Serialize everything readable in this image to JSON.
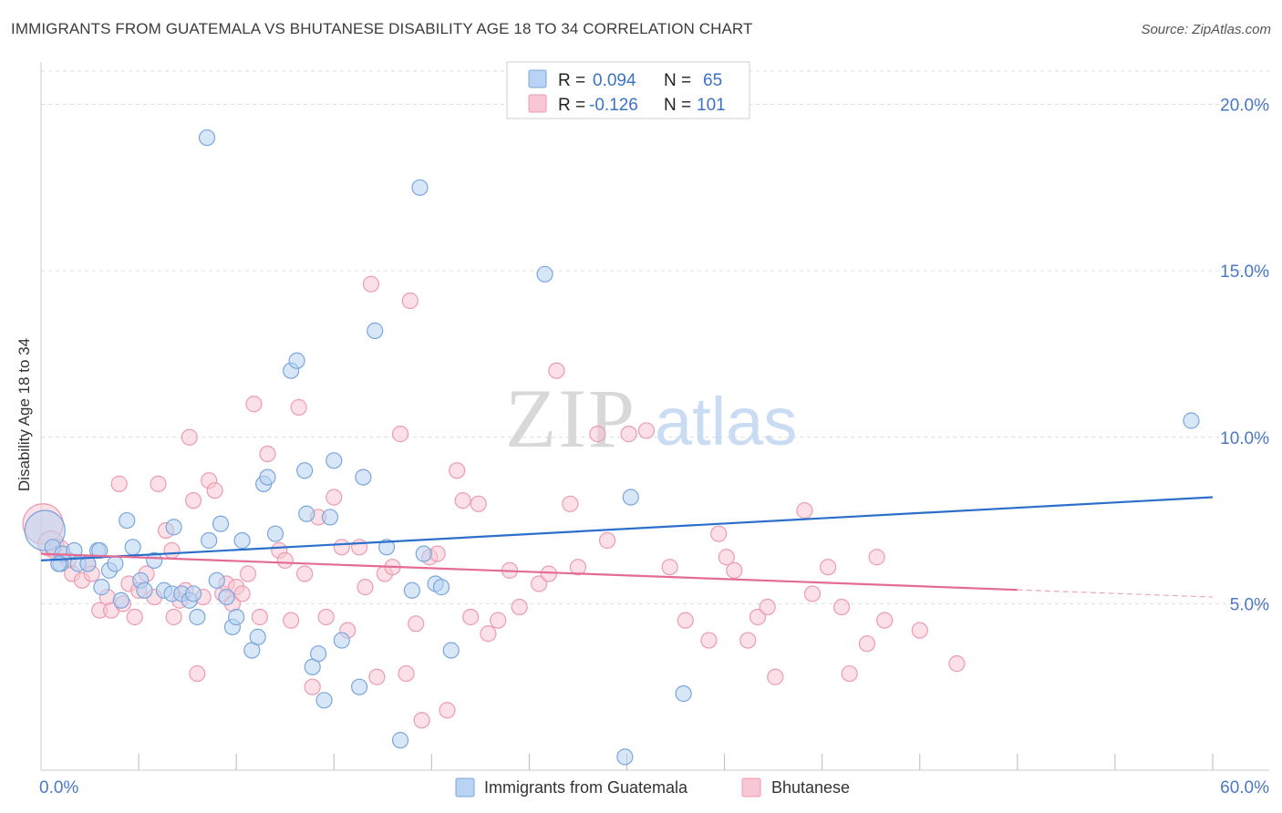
{
  "title": "IMMIGRANTS FROM GUATEMALA VS BHUTANESE DISABILITY AGE 18 TO 34 CORRELATION CHART",
  "source": "Source: ZipAtlas.com",
  "watermark": {
    "zip": "ZIP",
    "atlas": "atlas"
  },
  "legend_box": {
    "rows": [
      {
        "r_label": "R =",
        "r_value": "0.094",
        "n_label": "N =",
        "n_value": "65"
      },
      {
        "r_label": "R =",
        "r_value": "-0.126",
        "n_label": "N =",
        "n_value": "101"
      }
    ]
  },
  "bottom_legend": [
    "Immigrants from Guatemala",
    "Bhutanese"
  ],
  "colors": {
    "blue_fill": "#b8d3f3",
    "blue_stroke": "#7aa6dc",
    "blue_line": "#2c6fca",
    "pink_fill": "#f8c6d4",
    "pink_stroke": "#ec9bb2",
    "pink_line": "#e36b94",
    "tick_text": "#4a78c2",
    "grid": "#dddddd"
  },
  "chart_data": {
    "type": "scatter",
    "title": "IMMIGRANTS FROM GUATEMALA VS BHUTANESE DISABILITY AGE 18 TO 34 CORRELATION CHART",
    "xlabel": "",
    "ylabel": "Disability Age 18 to 34",
    "xlim": [
      0,
      60
    ],
    "ylim": [
      0,
      21
    ],
    "x_tick_labels": [
      "0.0%",
      "60.0%"
    ],
    "y_ticks": [
      5,
      10,
      15,
      20
    ],
    "y_tick_labels": [
      "5.0%",
      "10.0%",
      "15.0%",
      "20.0%"
    ],
    "grid": true,
    "legend_placement": "top-center",
    "series": [
      {
        "name": "Immigrants from Guatemala",
        "r": 0.094,
        "n": 65,
        "trend": {
          "x": [
            0,
            60
          ],
          "y": [
            6.3,
            8.2
          ],
          "dashed_from": null
        },
        "points": [
          [
            0.2,
            7.2,
            22
          ],
          [
            0.6,
            6.7,
            10
          ],
          [
            1.0,
            6.2,
            10
          ],
          [
            1.1,
            6.5,
            10
          ],
          [
            1.7,
            6.6,
            10
          ],
          [
            1.9,
            6.2,
            10
          ],
          [
            2.4,
            6.2,
            10
          ],
          [
            2.9,
            6.6,
            10
          ],
          [
            3.1,
            5.5,
            10
          ],
          [
            3.5,
            6.0,
            10
          ],
          [
            3.8,
            6.2,
            10
          ],
          [
            4.1,
            5.1,
            10
          ],
          [
            4.4,
            7.5,
            10
          ],
          [
            4.7,
            6.7,
            10
          ],
          [
            5.1,
            5.7,
            10
          ],
          [
            5.3,
            5.4,
            10
          ],
          [
            5.8,
            6.3,
            10
          ],
          [
            6.3,
            5.4,
            10
          ],
          [
            6.7,
            5.3,
            10
          ],
          [
            6.8,
            7.3,
            10
          ],
          [
            7.2,
            5.3,
            10
          ],
          [
            7.6,
            5.1,
            10
          ],
          [
            7.8,
            5.3,
            10
          ],
          [
            8.0,
            4.6,
            10
          ],
          [
            8.5,
            19.0,
            10
          ],
          [
            8.6,
            6.9,
            10
          ],
          [
            9.0,
            5.7,
            10
          ],
          [
            9.2,
            7.4,
            10
          ],
          [
            9.5,
            5.2,
            10
          ],
          [
            9.8,
            4.3,
            10
          ],
          [
            10.0,
            4.6,
            10
          ],
          [
            10.3,
            6.9,
            10
          ],
          [
            10.8,
            3.6,
            10
          ],
          [
            11.1,
            4.0,
            10
          ],
          [
            11.4,
            8.6,
            10
          ],
          [
            11.6,
            8.8,
            10
          ],
          [
            12.0,
            7.1,
            10
          ],
          [
            12.8,
            12.0,
            10
          ],
          [
            13.1,
            12.3,
            10
          ],
          [
            13.5,
            9.0,
            10
          ],
          [
            13.6,
            7.7,
            10
          ],
          [
            13.9,
            3.1,
            10
          ],
          [
            14.2,
            3.5,
            10
          ],
          [
            14.5,
            2.1,
            10
          ],
          [
            14.8,
            7.6,
            10
          ],
          [
            15.0,
            9.3,
            10
          ],
          [
            15.4,
            3.9,
            10
          ],
          [
            16.3,
            2.5,
            10
          ],
          [
            16.5,
            8.8,
            10
          ],
          [
            17.1,
            13.2,
            10
          ],
          [
            17.7,
            6.7,
            10
          ],
          [
            18.4,
            0.9,
            10
          ],
          [
            19.0,
            5.4,
            10
          ],
          [
            19.4,
            17.5,
            10
          ],
          [
            19.6,
            6.5,
            10
          ],
          [
            20.2,
            5.6,
            10
          ],
          [
            20.5,
            5.5,
            10
          ],
          [
            21.0,
            3.6,
            10
          ],
          [
            25.8,
            14.9,
            10
          ],
          [
            29.9,
            0.4,
            10
          ],
          [
            30.2,
            8.2,
            10
          ],
          [
            32.9,
            2.3,
            10
          ],
          [
            58.9,
            10.5,
            10
          ],
          [
            0.9,
            6.2,
            10
          ],
          [
            3.0,
            6.6,
            10
          ]
        ]
      },
      {
        "name": "Bhutanese",
        "r": -0.126,
        "n": 101,
        "trend": {
          "x": [
            0,
            60
          ],
          "y": [
            6.5,
            5.2
          ],
          "dashed_from": 50
        },
        "points": [
          [
            0.1,
            7.4,
            22
          ],
          [
            0.5,
            6.8,
            14
          ],
          [
            0.9,
            6.6,
            12
          ],
          [
            1.4,
            6.3,
            10
          ],
          [
            1.6,
            5.9,
            10
          ],
          [
            2.1,
            5.7,
            10
          ],
          [
            2.4,
            6.2,
            10
          ],
          [
            2.6,
            5.9,
            10
          ],
          [
            3.0,
            4.8,
            10
          ],
          [
            3.4,
            5.2,
            10
          ],
          [
            3.6,
            4.8,
            10
          ],
          [
            4.0,
            8.6,
            10
          ],
          [
            4.2,
            5.0,
            10
          ],
          [
            4.5,
            5.6,
            10
          ],
          [
            4.8,
            4.6,
            10
          ],
          [
            5.0,
            5.4,
            10
          ],
          [
            5.4,
            5.9,
            10
          ],
          [
            5.8,
            5.2,
            10
          ],
          [
            6.0,
            8.6,
            10
          ],
          [
            6.4,
            7.2,
            10
          ],
          [
            6.7,
            6.6,
            10
          ],
          [
            6.8,
            4.6,
            10
          ],
          [
            7.1,
            5.1,
            10
          ],
          [
            7.4,
            5.4,
            10
          ],
          [
            7.6,
            10.0,
            10
          ],
          [
            7.8,
            8.1,
            10
          ],
          [
            8.0,
            2.9,
            10
          ],
          [
            8.3,
            5.2,
            10
          ],
          [
            8.6,
            8.7,
            10
          ],
          [
            8.9,
            8.4,
            10
          ],
          [
            9.3,
            5.3,
            10
          ],
          [
            9.5,
            5.6,
            10
          ],
          [
            9.8,
            5.0,
            10
          ],
          [
            10.0,
            5.5,
            10
          ],
          [
            10.3,
            5.3,
            10
          ],
          [
            10.6,
            5.9,
            10
          ],
          [
            10.9,
            11.0,
            10
          ],
          [
            11.2,
            4.6,
            10
          ],
          [
            11.6,
            9.5,
            10
          ],
          [
            12.2,
            6.6,
            10
          ],
          [
            12.5,
            6.3,
            10
          ],
          [
            12.8,
            4.5,
            10
          ],
          [
            13.2,
            10.9,
            10
          ],
          [
            13.5,
            5.9,
            10
          ],
          [
            13.9,
            2.5,
            10
          ],
          [
            14.2,
            7.6,
            10
          ],
          [
            14.6,
            4.6,
            10
          ],
          [
            15.0,
            8.2,
            10
          ],
          [
            15.4,
            6.7,
            10
          ],
          [
            15.7,
            4.2,
            10
          ],
          [
            16.3,
            6.7,
            10
          ],
          [
            16.6,
            5.5,
            10
          ],
          [
            16.9,
            14.6,
            10
          ],
          [
            17.2,
            2.8,
            10
          ],
          [
            17.6,
            5.9,
            10
          ],
          [
            18.0,
            6.1,
            10
          ],
          [
            18.4,
            10.1,
            10
          ],
          [
            18.7,
            2.9,
            10
          ],
          [
            18.9,
            14.1,
            10
          ],
          [
            19.2,
            4.4,
            10
          ],
          [
            19.5,
            1.5,
            10
          ],
          [
            19.9,
            6.4,
            10
          ],
          [
            20.3,
            6.5,
            10
          ],
          [
            20.8,
            1.8,
            10
          ],
          [
            21.3,
            9.0,
            10
          ],
          [
            21.6,
            8.1,
            10
          ],
          [
            22.0,
            4.6,
            10
          ],
          [
            22.4,
            8.0,
            10
          ],
          [
            22.9,
            4.1,
            10
          ],
          [
            23.4,
            4.5,
            10
          ],
          [
            24.0,
            6.0,
            10
          ],
          [
            24.5,
            4.9,
            10
          ],
          [
            25.5,
            5.6,
            10
          ],
          [
            26.0,
            5.9,
            10
          ],
          [
            26.4,
            12.0,
            10
          ],
          [
            27.1,
            8.0,
            10
          ],
          [
            27.5,
            6.1,
            10
          ],
          [
            28.5,
            10.1,
            10
          ],
          [
            29.0,
            6.9,
            10
          ],
          [
            30.1,
            10.1,
            10
          ],
          [
            31.0,
            10.2,
            10
          ],
          [
            32.2,
            6.1,
            10
          ],
          [
            33.0,
            4.5,
            10
          ],
          [
            34.2,
            3.9,
            10
          ],
          [
            34.7,
            7.1,
            10
          ],
          [
            35.1,
            6.4,
            10
          ],
          [
            35.5,
            6.0,
            10
          ],
          [
            36.2,
            3.9,
            10
          ],
          [
            36.7,
            4.6,
            10
          ],
          [
            37.2,
            4.9,
            10
          ],
          [
            37.6,
            2.8,
            10
          ],
          [
            39.1,
            7.8,
            10
          ],
          [
            39.5,
            5.3,
            10
          ],
          [
            40.3,
            6.1,
            10
          ],
          [
            41.0,
            4.9,
            10
          ],
          [
            41.4,
            2.9,
            10
          ],
          [
            42.3,
            3.8,
            10
          ],
          [
            42.8,
            6.4,
            10
          ],
          [
            43.2,
            4.5,
            10
          ],
          [
            45.0,
            4.2,
            10
          ],
          [
            46.9,
            3.2,
            10
          ]
        ]
      }
    ]
  }
}
